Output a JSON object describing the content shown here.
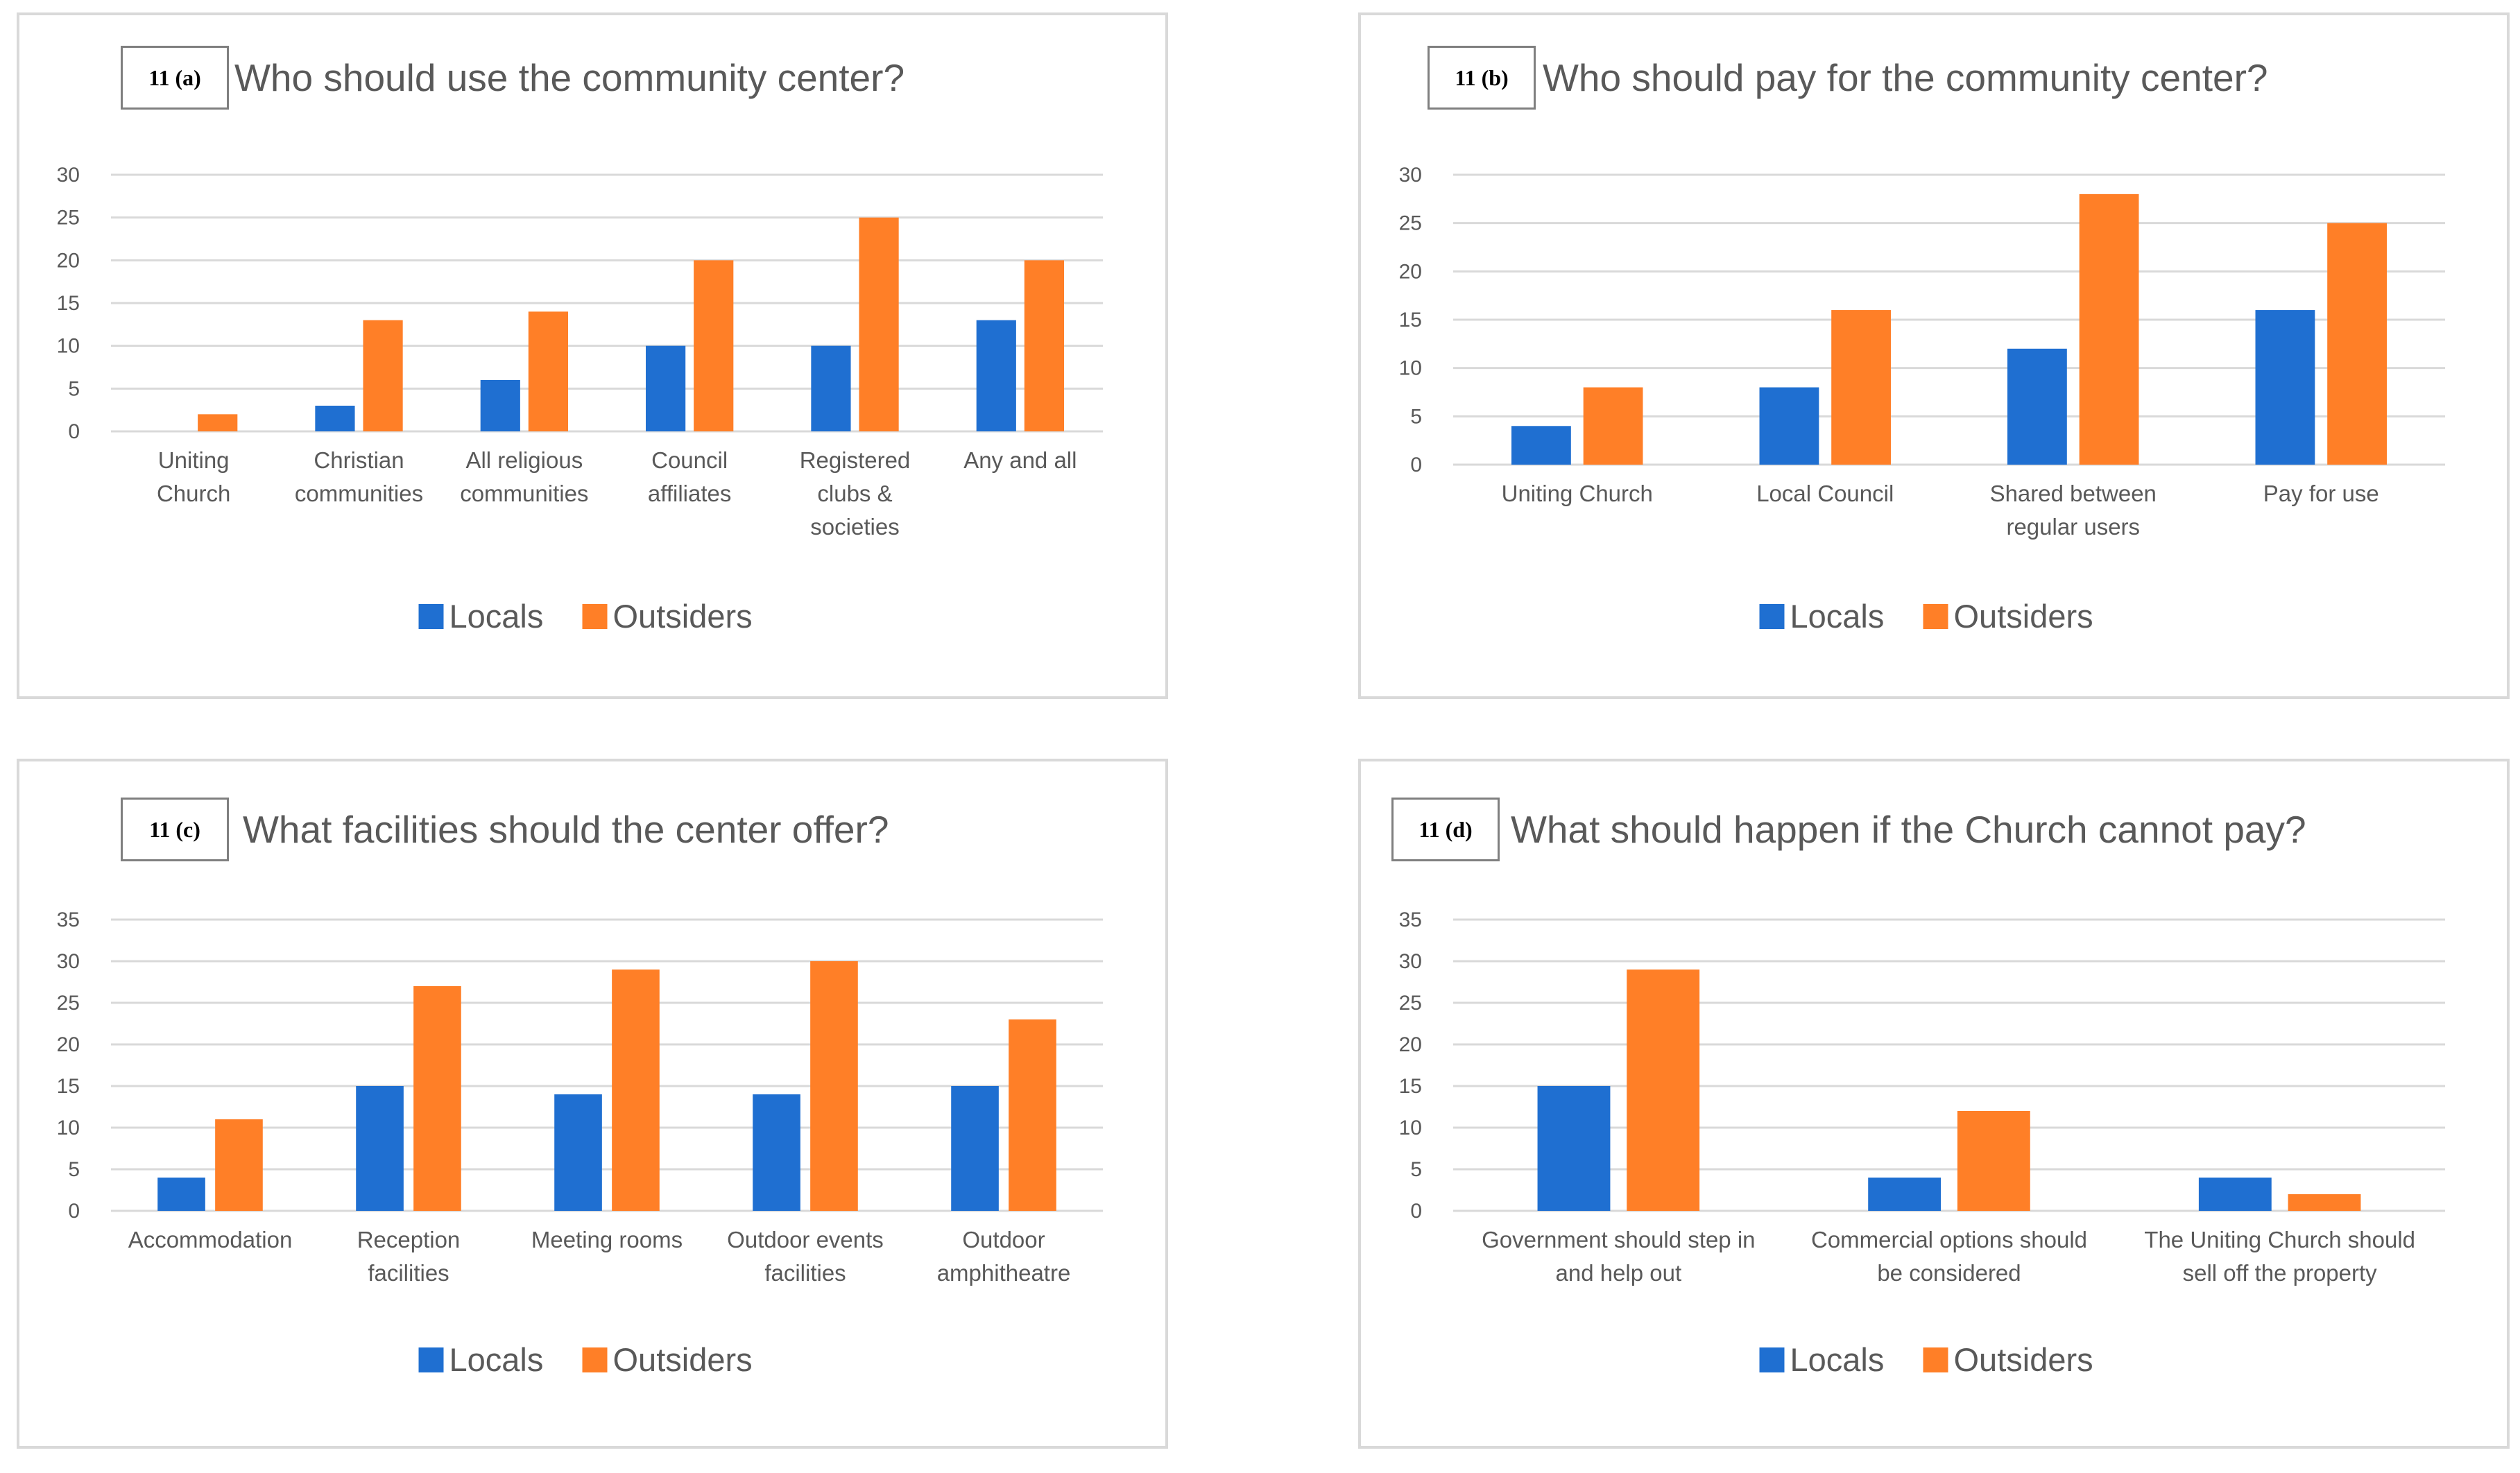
{
  "colors": {
    "locals": "#1f6fd1",
    "outsiders": "#ff7f27",
    "grid": "#d9d9d9",
    "text": "#595959"
  },
  "chart_data": [
    {
      "type": "bar",
      "tag": "11 (a)",
      "title": "Who should use the community center?",
      "categories": [
        [
          "Uniting",
          "Church"
        ],
        [
          "Christian",
          "communities"
        ],
        [
          "All religious",
          "communities"
        ],
        [
          "Council",
          "affiliates"
        ],
        [
          "Registered",
          "clubs &",
          "societies"
        ],
        [
          "Any and all"
        ]
      ],
      "series": [
        {
          "name": "Locals",
          "values": [
            0,
            3,
            6,
            10,
            10,
            13
          ]
        },
        {
          "name": "Outsiders",
          "values": [
            2,
            13,
            14,
            20,
            25,
            20
          ]
        }
      ],
      "yticks": [
        "0",
        "5",
        "10",
        "15",
        "20",
        "25",
        "30"
      ],
      "ylim": [
        0,
        30
      ],
      "legend": "bottom"
    },
    {
      "type": "bar",
      "tag": "11 (b)",
      "title": "Who should pay for the community center?",
      "categories": [
        [
          "Uniting Church"
        ],
        [
          "Local Council"
        ],
        [
          "Shared between",
          "regular users"
        ],
        [
          "Pay for use"
        ]
      ],
      "series": [
        {
          "name": "Locals",
          "values": [
            4,
            8,
            12,
            16
          ]
        },
        {
          "name": "Outsiders",
          "values": [
            8,
            16,
            28,
            25
          ]
        }
      ],
      "yticks": [
        "0",
        "5",
        "10",
        "15",
        "20",
        "25",
        "30"
      ],
      "ylim": [
        0,
        30
      ],
      "legend": "bottom"
    },
    {
      "type": "bar",
      "tag": "11 (c)",
      "title": "What facilities should the center offer?",
      "categories": [
        [
          "Accommodation"
        ],
        [
          "Reception",
          "facilities"
        ],
        [
          "Meeting rooms"
        ],
        [
          "Outdoor events",
          "facilities"
        ],
        [
          "Outdoor",
          "amphitheatre"
        ]
      ],
      "series": [
        {
          "name": "Locals",
          "values": [
            4,
            15,
            14,
            14,
            15
          ]
        },
        {
          "name": "Outsiders",
          "values": [
            11,
            27,
            29,
            30,
            23
          ]
        }
      ],
      "yticks": [
        "0",
        "5",
        "10",
        "15",
        "20",
        "25",
        "30",
        "35"
      ],
      "ylim": [
        0,
        35
      ],
      "legend": "bottom"
    },
    {
      "type": "bar",
      "tag": "11 (d)",
      "title": "What should happen if the Church cannot pay?",
      "categories": [
        [
          "Government should step in",
          "and help out"
        ],
        [
          "Commercial options should",
          "be considered"
        ],
        [
          "The Uniting Church should",
          "sell off the property"
        ]
      ],
      "series": [
        {
          "name": "Locals",
          "values": [
            15,
            4,
            4
          ]
        },
        {
          "name": "Outsiders",
          "values": [
            29,
            12,
            2
          ]
        }
      ],
      "yticks": [
        "0",
        "5",
        "10",
        "15",
        "20",
        "25",
        "30",
        "35"
      ],
      "ylim": [
        0,
        35
      ],
      "legend": "bottom"
    }
  ]
}
